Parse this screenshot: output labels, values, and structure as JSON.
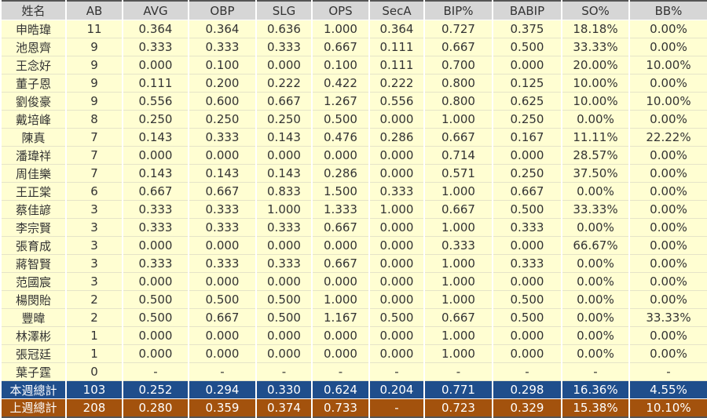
{
  "headers": [
    "姓名",
    "AB",
    "AVG",
    "OBP",
    "SLG",
    "OPS",
    "SecA",
    "BIP%",
    "BABIP",
    "SO%",
    "BB%"
  ],
  "rows": [
    [
      "申晧瑋",
      "11",
      "0.364",
      "0.364",
      "0.636",
      "1.000",
      "0.364",
      "0.727",
      "0.375",
      "18.18%",
      "0.00%"
    ],
    [
      "池恩齊",
      "9",
      "0.333",
      "0.333",
      "0.333",
      "0.667",
      "0.111",
      "0.667",
      "0.500",
      "33.33%",
      "0.00%"
    ],
    [
      "王念好",
      "9",
      "0.000",
      "0.100",
      "0.000",
      "0.100",
      "0.111",
      "0.700",
      "0.000",
      "20.00%",
      "10.00%"
    ],
    [
      "董子恩",
      "9",
      "0.111",
      "0.200",
      "0.222",
      "0.422",
      "0.222",
      "0.800",
      "0.125",
      "10.00%",
      "0.00%"
    ],
    [
      "劉俊豪",
      "9",
      "0.556",
      "0.600",
      "0.667",
      "1.267",
      "0.556",
      "0.800",
      "0.625",
      "10.00%",
      "10.00%"
    ],
    [
      "戴培峰",
      "8",
      "0.250",
      "0.250",
      "0.250",
      "0.500",
      "0.000",
      "1.000",
      "0.250",
      "0.00%",
      "0.00%"
    ],
    [
      "陳真",
      "7",
      "0.143",
      "0.333",
      "0.143",
      "0.476",
      "0.286",
      "0.667",
      "0.167",
      "11.11%",
      "22.22%"
    ],
    [
      "潘瑋祥",
      "7",
      "0.000",
      "0.000",
      "0.000",
      "0.000",
      "0.000",
      "0.714",
      "0.000",
      "28.57%",
      "0.00%"
    ],
    [
      "周佳樂",
      "7",
      "0.143",
      "0.143",
      "0.143",
      "0.286",
      "0.000",
      "0.571",
      "0.250",
      "37.50%",
      "0.00%"
    ],
    [
      "王正棠",
      "6",
      "0.667",
      "0.667",
      "0.833",
      "1.500",
      "0.333",
      "1.000",
      "0.667",
      "0.00%",
      "0.00%"
    ],
    [
      "蔡佳諺",
      "3",
      "0.333",
      "0.333",
      "1.000",
      "1.333",
      "1.000",
      "0.667",
      "0.500",
      "33.33%",
      "0.00%"
    ],
    [
      "李宗賢",
      "3",
      "0.333",
      "0.333",
      "0.333",
      "0.667",
      "0.000",
      "1.000",
      "0.333",
      "0.00%",
      "0.00%"
    ],
    [
      "張育成",
      "3",
      "0.000",
      "0.000",
      "0.000",
      "0.000",
      "0.000",
      "0.333",
      "0.000",
      "66.67%",
      "0.00%"
    ],
    [
      "蔣智賢",
      "3",
      "0.333",
      "0.333",
      "0.333",
      "0.667",
      "0.000",
      "1.000",
      "0.333",
      "0.00%",
      "0.00%"
    ],
    [
      "范國宸",
      "3",
      "0.000",
      "0.000",
      "0.000",
      "0.000",
      "0.000",
      "1.000",
      "0.000",
      "0.00%",
      "0.00%"
    ],
    [
      "楊閔貽",
      "2",
      "0.500",
      "0.500",
      "0.500",
      "1.000",
      "0.000",
      "1.000",
      "0.500",
      "0.00%",
      "0.00%"
    ],
    [
      "豐暐",
      "2",
      "0.500",
      "0.667",
      "0.500",
      "1.167",
      "0.500",
      "0.667",
      "0.500",
      "0.00%",
      "33.33%"
    ],
    [
      "林澤彬",
      "1",
      "0.000",
      "0.000",
      "0.000",
      "0.000",
      "0.000",
      "1.000",
      "0.000",
      "0.00%",
      "0.00%"
    ],
    [
      "張冠廷",
      "1",
      "0.000",
      "0.000",
      "0.000",
      "0.000",
      "0.000",
      "1.000",
      "0.000",
      "0.00%",
      "0.00%"
    ],
    [
      "葉子霆",
      "0",
      "-",
      "-",
      "-",
      "-",
      "-",
      "-",
      "-",
      "-",
      "-"
    ]
  ],
  "this_week_total": [
    "本週總計",
    "103",
    "0.252",
    "0.294",
    "0.330",
    "0.624",
    "0.204",
    "0.771",
    "0.298",
    "16.36%",
    "4.55%"
  ],
  "last_week_total": [
    "上週總計",
    "208",
    "0.280",
    "0.359",
    "0.374",
    "0.733",
    "-",
    "0.723",
    "0.329",
    "15.38%",
    "10.10%"
  ],
  "colors": {
    "header": "#d6d6d6",
    "row": "#fffed2",
    "this_week": "#1f4e8c",
    "last_week": "#a3520d"
  }
}
